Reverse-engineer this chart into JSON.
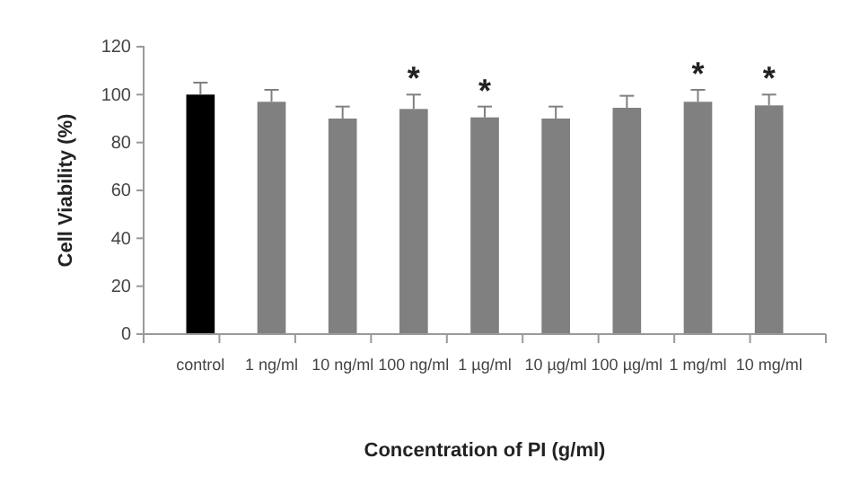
{
  "chart_data": {
    "type": "bar",
    "xlabel": "Concentration of PI (g/ml)",
    "ylabel": "Cell Viability (%)",
    "categories": [
      "control",
      "1 ng/ml",
      "10 ng/ml",
      "100 ng/ml",
      "1 µg/ml",
      "10 µg/ml",
      "100 µg/ml",
      "1 mg/ml",
      "10 mg/ml"
    ],
    "values": [
      100,
      97,
      90,
      94,
      90.5,
      90,
      94.5,
      97,
      95.5
    ],
    "colors": [
      "#000000",
      "#808080",
      "#808080",
      "#808080",
      "#808080",
      "#808080",
      "#808080",
      "#808080",
      "#808080"
    ],
    "errors": [
      5,
      5,
      5,
      6,
      4.5,
      5,
      5,
      5,
      4.5
    ],
    "ylim": [
      0,
      120
    ],
    "yticks": [
      0,
      20,
      40,
      60,
      80,
      100,
      120
    ],
    "grid": false,
    "annotations": [
      {
        "text": "*",
        "x": "100 ng/ml",
        "y": 100
      },
      {
        "text": "*",
        "x": "1 µg/ml",
        "y": 95
      },
      {
        "text": "*",
        "x": "1 mg/ml",
        "y": 102
      },
      {
        "text": "*",
        "x": "10 mg/ml",
        "y": 100
      }
    ]
  }
}
